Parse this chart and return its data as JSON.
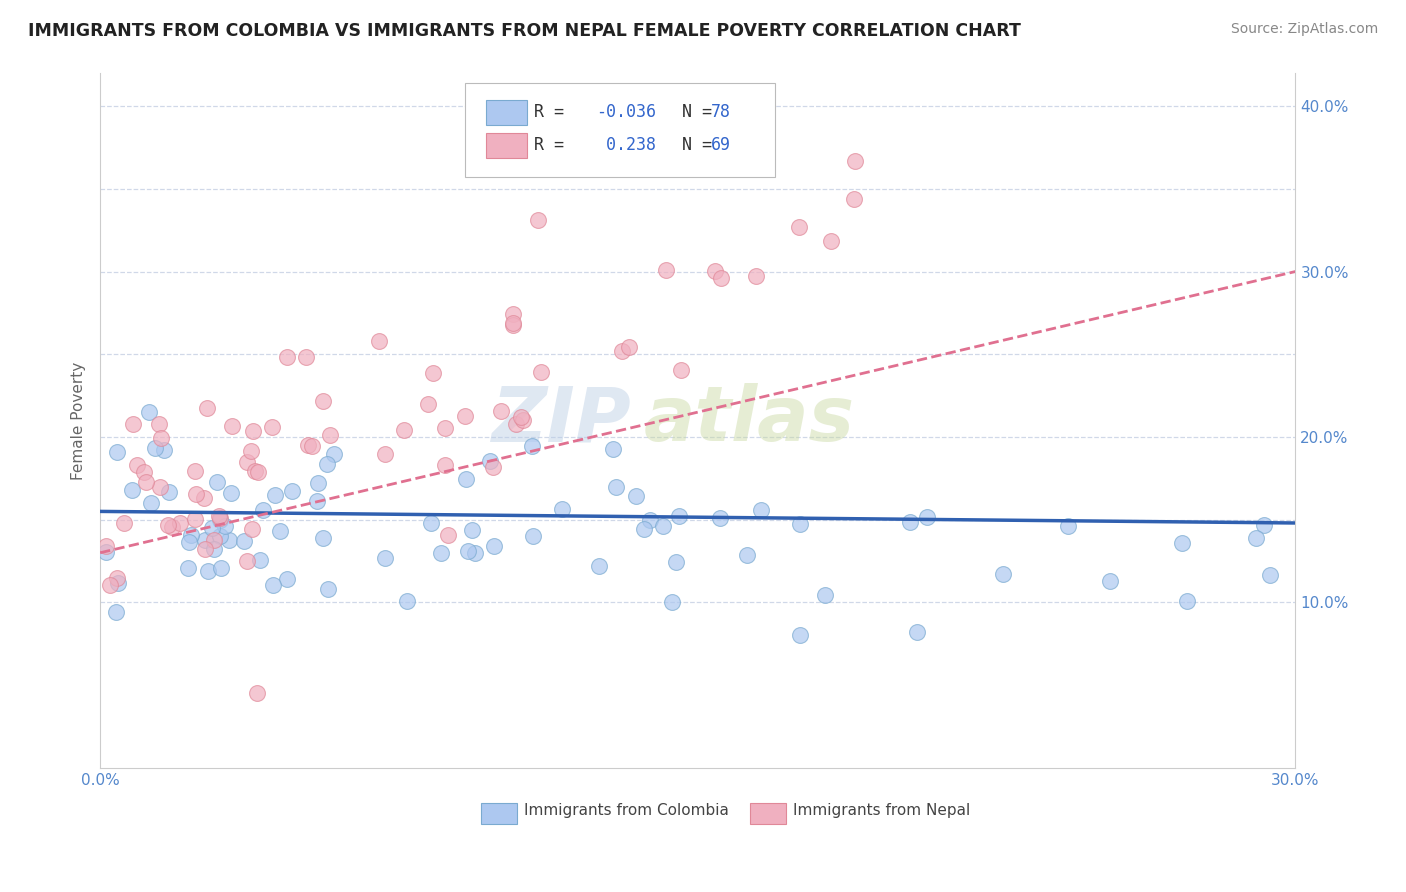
{
  "title": "IMMIGRANTS FROM COLOMBIA VS IMMIGRANTS FROM NEPAL FEMALE POVERTY CORRELATION CHART",
  "source": "Source: ZipAtlas.com",
  "ylabel": "Female Poverty",
  "x_min": 0.0,
  "x_max": 0.3,
  "y_min": 0.0,
  "y_max": 0.42,
  "colombia_color": "#adc8f0",
  "nepal_color": "#f0b0c0",
  "colombia_edge": "#7aaad0",
  "nepal_edge": "#e08898",
  "colombia_R": -0.036,
  "nepal_R": 0.238,
  "colombia_N": 78,
  "nepal_N": 69,
  "colombia_line_color": "#3060b0",
  "nepal_line_color": "#e07090",
  "watermark_zip": "ZIP",
  "watermark_atlas": "atlas",
  "legend_label_colombia": "Immigrants from Colombia",
  "legend_label_nepal": "Immigrants from Nepal",
  "grid_color": "#d0d8e8",
  "y_tick_positions": [
    0.1,
    0.2,
    0.3,
    0.4
  ],
  "y_tick_labels": [
    "10.0%",
    "20.0%",
    "30.0%",
    "40.0%"
  ],
  "x_tick_positions": [
    0.0,
    0.3
  ],
  "x_tick_labels": [
    "0.0%",
    "30.0%"
  ]
}
